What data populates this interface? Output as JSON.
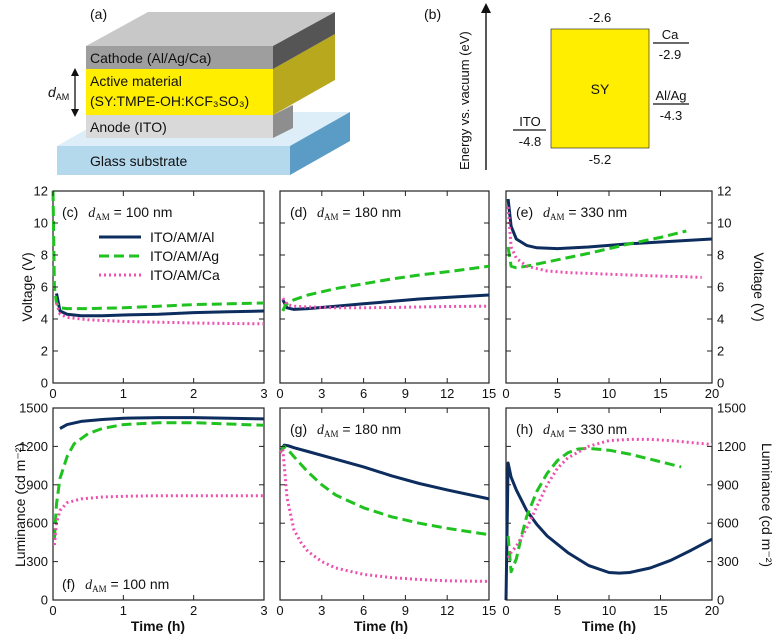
{
  "device": {
    "panel_label": "(a)",
    "cathode": "Cathode (Al/Ag/Ca)",
    "active_line1": "Active material",
    "active_line2": "(SY:TMPE-OH:KCF₃SO₃)",
    "anode": "Anode (ITO)",
    "glass": "Glass substrate",
    "thickness_symbol": "d",
    "thickness_sub": "AM"
  },
  "energy": {
    "panel_label": "(b)",
    "axis_label": "Energy vs. vacuum (eV)",
    "sy_label": "SY",
    "lumo": "-2.6",
    "homo": "-5.2",
    "ito_name": "ITO",
    "ito_value": "-4.8",
    "ca_name": "Ca",
    "ca_value": "-2.9",
    "alag_name": "Al/Ag",
    "alag_value": "-4.3"
  },
  "legend": [
    {
      "label": "ITO/AM/Al",
      "color": "#0d2d5e",
      "dash": "solid"
    },
    {
      "label": "ITO/AM/Ag",
      "color": "#1fc21f",
      "dash": "dashed"
    },
    {
      "label": "ITO/AM/Ca",
      "color": "#ee4fb0",
      "dash": "dotted"
    }
  ],
  "axis_titles": {
    "voltage": "Voltage (V)",
    "luminance": "Luminance (cd m⁻²)",
    "time": "Time (h)"
  },
  "chart_data": [
    {
      "id": "c",
      "type": "line",
      "title": "(c)",
      "thickness": "100 nm",
      "ylabel": "Voltage (V)",
      "xlabel": "",
      "xlim": [
        0,
        3
      ],
      "ylim": [
        0,
        12
      ],
      "xticks": [
        0,
        1,
        2,
        3
      ],
      "yticks": [
        0,
        2,
        4,
        6,
        8,
        10,
        12
      ],
      "series": [
        {
          "name": "ITO/AM/Al",
          "x": [
            0.05,
            0.1,
            0.2,
            0.4,
            0.7,
            1,
            1.5,
            2,
            2.5,
            3
          ],
          "y": [
            5.6,
            4.5,
            4.3,
            4.2,
            4.2,
            4.25,
            4.3,
            4.4,
            4.45,
            4.5
          ]
        },
        {
          "name": "ITO/AM/Ag",
          "x": [
            0,
            0.02,
            0.05,
            0.1,
            0.2,
            0.5,
            1,
            1.5,
            2,
            2.5,
            3
          ],
          "y": [
            12,
            6,
            5.0,
            4.7,
            4.65,
            4.65,
            4.7,
            4.8,
            4.9,
            4.95,
            5.0
          ]
        },
        {
          "name": "ITO/AM/Ca",
          "x": [
            0.05,
            0.1,
            0.2,
            0.5,
            1,
            1.5,
            2,
            2.5,
            3
          ],
          "y": [
            5.0,
            4.3,
            4.1,
            3.95,
            3.85,
            3.8,
            3.75,
            3.72,
            3.7
          ]
        }
      ]
    },
    {
      "id": "d",
      "type": "line",
      "title": "(d)",
      "thickness": "180 nm",
      "ylabel": "",
      "xlabel": "",
      "xlim": [
        0,
        15
      ],
      "ylim": [
        0,
        12
      ],
      "xticks": [
        0,
        3,
        6,
        9,
        12,
        15
      ],
      "yticks": [
        0,
        2,
        4,
        6,
        8,
        10,
        12
      ],
      "series": [
        {
          "name": "ITO/AM/Al",
          "x": [
            0.2,
            0.5,
            1,
            2,
            4,
            6,
            8,
            10,
            12,
            15
          ],
          "y": [
            5.2,
            4.7,
            4.6,
            4.65,
            4.8,
            4.95,
            5.1,
            5.25,
            5.35,
            5.5
          ]
        },
        {
          "name": "ITO/AM/Ag",
          "x": [
            0.2,
            0.4,
            1,
            2,
            4,
            6,
            8,
            10,
            12,
            15
          ],
          "y": [
            4.5,
            4.9,
            5.2,
            5.5,
            5.9,
            6.2,
            6.5,
            6.75,
            6.95,
            7.3
          ]
        },
        {
          "name": "ITO/AM/Ca",
          "x": [
            0.2,
            0.5,
            1,
            2,
            4,
            6,
            8,
            10,
            12,
            15
          ],
          "y": [
            5.3,
            4.9,
            4.8,
            4.75,
            4.7,
            4.7,
            4.72,
            4.75,
            4.78,
            4.8
          ]
        }
      ]
    },
    {
      "id": "e",
      "type": "line",
      "title": "(e)",
      "thickness": "330 nm",
      "ylabel": "Voltage (V)",
      "xlabel": "",
      "xlim": [
        0,
        20
      ],
      "ylim": [
        0,
        12
      ],
      "xticks": [
        0,
        5,
        10,
        15,
        20
      ],
      "yticks": [
        0,
        2,
        4,
        6,
        8,
        10,
        12
      ],
      "series": [
        {
          "name": "ITO/AM/Al",
          "x": [
            0.2,
            0.5,
            1,
            2,
            3,
            5,
            8,
            12,
            16,
            20
          ],
          "y": [
            11.5,
            9.8,
            9.0,
            8.6,
            8.45,
            8.4,
            8.5,
            8.7,
            8.85,
            9.0
          ]
        },
        {
          "name": "ITO/AM/Ag",
          "x": [
            0.2,
            0.5,
            1,
            2,
            5,
            8,
            12,
            15,
            17.5
          ],
          "y": [
            8.5,
            7.3,
            7.2,
            7.3,
            7.7,
            8.1,
            8.7,
            9.1,
            9.5
          ]
        },
        {
          "name": "ITO/AM/Ca",
          "x": [
            0.2,
            0.5,
            1,
            2,
            4,
            6,
            10,
            14,
            17,
            19
          ],
          "y": [
            11,
            8.5,
            7.8,
            7.3,
            7.0,
            6.9,
            6.8,
            6.7,
            6.65,
            6.6
          ]
        }
      ]
    },
    {
      "id": "f",
      "type": "line",
      "title": "(f)",
      "thickness": "100 nm",
      "ylabel": "Luminance (cd m⁻²)",
      "xlabel": "Time (h)",
      "xlim": [
        0,
        3
      ],
      "ylim": [
        0,
        1500
      ],
      "xticks": [
        0,
        1,
        2,
        3
      ],
      "yticks": [
        0,
        300,
        600,
        900,
        1200,
        1500
      ],
      "series": [
        {
          "name": "ITO/AM/Al",
          "x": [
            0.1,
            0.2,
            0.4,
            0.7,
            1,
            1.5,
            2,
            2.5,
            3
          ],
          "y": [
            1340,
            1370,
            1395,
            1410,
            1420,
            1425,
            1425,
            1420,
            1415
          ]
        },
        {
          "name": "ITO/AM/Ag",
          "x": [
            0.02,
            0.05,
            0.1,
            0.2,
            0.3,
            0.5,
            0.7,
            1,
            1.5,
            2,
            2.5,
            3
          ],
          "y": [
            480,
            750,
            950,
            1120,
            1220,
            1300,
            1340,
            1370,
            1385,
            1385,
            1375,
            1365
          ]
        },
        {
          "name": "ITO/AM/Ca",
          "x": [
            0.02,
            0.05,
            0.1,
            0.2,
            0.4,
            0.7,
            1,
            1.5,
            2,
            2.5,
            3
          ],
          "y": [
            430,
            600,
            700,
            760,
            790,
            805,
            810,
            815,
            815,
            815,
            815
          ]
        }
      ]
    },
    {
      "id": "g",
      "type": "line",
      "title": "(g)",
      "thickness": "180 nm",
      "ylabel": "",
      "xlabel": "Time (h)",
      "xlim": [
        0,
        15
      ],
      "ylim": [
        0,
        1500
      ],
      "xticks": [
        0,
        3,
        6,
        9,
        12,
        15
      ],
      "yticks": [
        0,
        300,
        600,
        900,
        1200,
        1500
      ],
      "series": [
        {
          "name": "ITO/AM/Al",
          "x": [
            0,
            0.3,
            0.6,
            1,
            2,
            4,
            6,
            8,
            10,
            12,
            15
          ],
          "y": [
            1150,
            1210,
            1205,
            1190,
            1160,
            1100,
            1040,
            970,
            910,
            860,
            790
          ]
        },
        {
          "name": "ITO/AM/Ag",
          "x": [
            0,
            0.3,
            0.6,
            1,
            2,
            3,
            4,
            6,
            8,
            10,
            12,
            15
          ],
          "y": [
            1150,
            1200,
            1170,
            1120,
            1000,
            900,
            820,
            720,
            650,
            600,
            560,
            510
          ]
        },
        {
          "name": "ITO/AM/Ca",
          "x": [
            0,
            0.2,
            0.5,
            1,
            1.5,
            2,
            3,
            4,
            6,
            8,
            10,
            12,
            15
          ],
          "y": [
            1150,
            1180,
            800,
            550,
            450,
            380,
            300,
            250,
            200,
            175,
            160,
            150,
            145
          ]
        }
      ]
    },
    {
      "id": "h",
      "type": "line",
      "title": "(h)",
      "thickness": "330 nm",
      "ylabel": "Luminance (cd m⁻²)",
      "xlabel": "Time (h)",
      "xlim": [
        0,
        20
      ],
      "ylim": [
        0,
        1500
      ],
      "xticks": [
        0,
        5,
        10,
        15,
        20
      ],
      "yticks": [
        0,
        300,
        600,
        900,
        1200,
        1500
      ],
      "series": [
        {
          "name": "ITO/AM/Al",
          "x": [
            0,
            0.2,
            0.5,
            1,
            2,
            3,
            4,
            6,
            8,
            10,
            11,
            12,
            14,
            16,
            18,
            20
          ],
          "y": [
            0,
            1070,
            960,
            860,
            700,
            590,
            500,
            370,
            270,
            215,
            210,
            215,
            250,
            310,
            390,
            475
          ]
        },
        {
          "name": "ITO/AM/Ag",
          "x": [
            0.2,
            0.5,
            1,
            1.5,
            2,
            3,
            4,
            5,
            6,
            7,
            8,
            10,
            12,
            14,
            17
          ],
          "y": [
            500,
            220,
            320,
            500,
            650,
            850,
            990,
            1090,
            1150,
            1180,
            1185,
            1170,
            1140,
            1100,
            1040
          ]
        },
        {
          "name": "ITO/AM/Ca",
          "x": [
            0.2,
            0.5,
            1,
            2,
            3,
            4,
            5,
            6,
            8,
            10,
            12,
            14,
            16,
            18,
            20
          ],
          "y": [
            330,
            370,
            420,
            560,
            730,
            900,
            1030,
            1110,
            1200,
            1245,
            1255,
            1255,
            1245,
            1230,
            1215
          ]
        }
      ]
    }
  ]
}
